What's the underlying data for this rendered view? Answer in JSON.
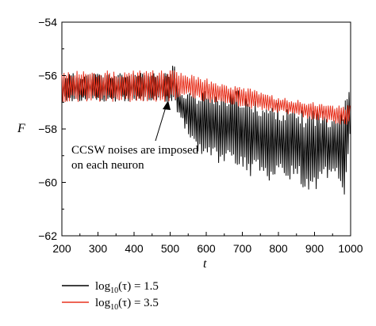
{
  "chart_data": {
    "type": "line",
    "xlabel": "t",
    "ylabel": "F",
    "xlim": [
      200,
      1000
    ],
    "ylim": [
      -62,
      -54
    ],
    "x_ticks": [
      "200",
      "300",
      "400",
      "500",
      "600",
      "700",
      "800",
      "900",
      "1000"
    ],
    "y_ticks": [
      "−54",
      "−56",
      "−58",
      "−60",
      "−62"
    ],
    "annotation": {
      "line1": "CCSW noises are imposed",
      "line2": "on each neuron",
      "arrow_target": {
        "x": 510,
        "y": -56.8
      }
    },
    "legend": {
      "position": "bottom-left",
      "entries": [
        {
          "label_pre": "log",
          "label_sub": "10",
          "label_post": "(τ) = 1.5",
          "color": "#000000"
        },
        {
          "label_pre": "log",
          "label_sub": "10",
          "label_post": "(τ) = 3.5",
          "color": "#e8321e"
        }
      ]
    },
    "series": [
      {
        "name": "log10(τ) = 1.5",
        "color": "#000000",
        "x": [
          200,
          500,
          510,
          520,
          540,
          560,
          580,
          600,
          620,
          640,
          660,
          680,
          700,
          720,
          740,
          760,
          780,
          800,
          820,
          840,
          860,
          880,
          900,
          920,
          940,
          960,
          980,
          990,
          1000
        ],
        "upper": [
          -55.9,
          -55.9,
          -55.0,
          -56.4,
          -56.6,
          -56.5,
          -56.7,
          -56.4,
          -56.5,
          -56.8,
          -56.6,
          -56.5,
          -56.6,
          -57.0,
          -56.9,
          -57.0,
          -57.1,
          -57.0,
          -57.2,
          -57.2,
          -57.3,
          -57.3,
          -57.1,
          -57.3,
          -57.3,
          -57.4,
          -56.8,
          -56.3,
          -56.5
        ],
        "lower": [
          -57.0,
          -57.0,
          -56.9,
          -57.4,
          -58.0,
          -58.5,
          -59.0,
          -59.0,
          -59.2,
          -59.5,
          -59.4,
          -59.6,
          -59.4,
          -59.8,
          -59.7,
          -59.9,
          -60.0,
          -59.8,
          -60.1,
          -59.8,
          -60.0,
          -60.5,
          -60.6,
          -59.8,
          -60.2,
          -59.5,
          -61.0,
          -59.5,
          -58.5
        ]
      },
      {
        "name": "log10(τ) = 3.5",
        "color": "#e8321e",
        "x": [
          200,
          500,
          510,
          550,
          600,
          650,
          700,
          750,
          800,
          850,
          900,
          950,
          1000
        ],
        "upper": [
          -55.8,
          -55.8,
          -55.8,
          -55.9,
          -56.1,
          -56.3,
          -56.4,
          -56.6,
          -56.8,
          -56.9,
          -57.0,
          -57.1,
          -57.1
        ],
        "lower": [
          -57.0,
          -57.0,
          -56.9,
          -56.8,
          -57.0,
          -57.1,
          -57.2,
          -57.3,
          -57.4,
          -57.5,
          -57.7,
          -57.8,
          -57.9
        ]
      }
    ]
  }
}
